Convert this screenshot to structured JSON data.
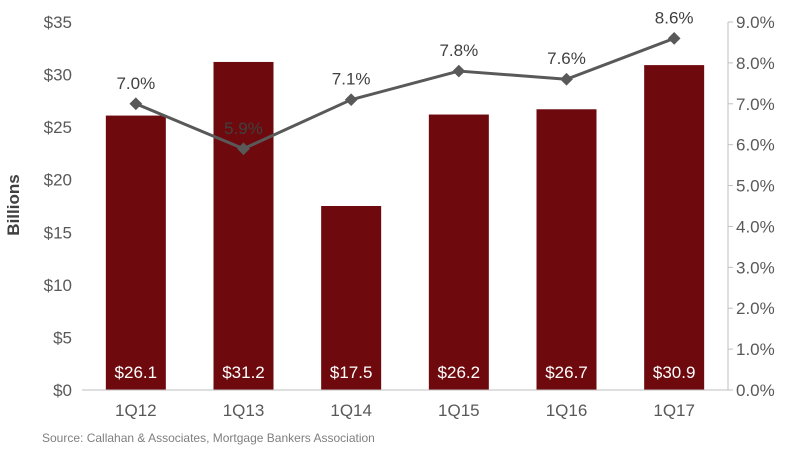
{
  "chart_data": {
    "type": "bar",
    "categories": [
      "1Q12",
      "1Q13",
      "1Q14",
      "1Q15",
      "1Q16",
      "1Q17"
    ],
    "series": [
      {
        "type": "bar",
        "axis": "left",
        "values": [
          26.1,
          31.2,
          17.5,
          26.2,
          26.7,
          30.9
        ],
        "data_labels": [
          "$26.1",
          "$31.2",
          "$17.5",
          "$26.2",
          "$26.7",
          "$30.9"
        ],
        "color": "#6e0a0d"
      },
      {
        "type": "line",
        "axis": "right",
        "values": [
          7.0,
          5.9,
          7.1,
          7.8,
          7.6,
          8.6
        ],
        "data_labels": [
          "7.0%",
          "5.9%",
          "7.1%",
          "7.8%",
          "7.6%",
          "8.6%"
        ],
        "color": "#595959"
      }
    ],
    "ylabel": "Billions",
    "ylim": [
      0,
      35
    ],
    "yticks": [
      "$0",
      "$5",
      "$10",
      "$15",
      "$20",
      "$25",
      "$30",
      "$35"
    ],
    "y2lim": [
      0,
      9
    ],
    "y2ticks": [
      "0.0%",
      "1.0%",
      "2.0%",
      "3.0%",
      "4.0%",
      "5.0%",
      "6.0%",
      "7.0%",
      "8.0%",
      "9.0%"
    ],
    "grid": false,
    "legend": "none"
  },
  "source": "Source: Callahan & Associates, Mortgage Bankers Association"
}
